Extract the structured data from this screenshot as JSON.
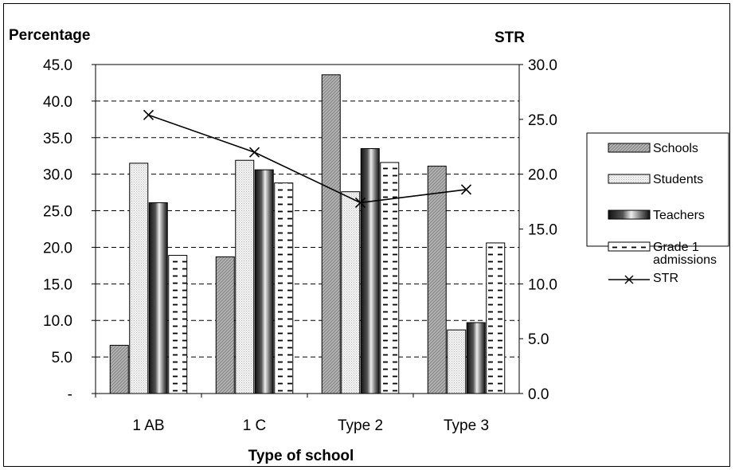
{
  "chart_data": {
    "type": "bar",
    "xlabel": "Type of school",
    "ylabel": "Percentage",
    "y2label": "STR",
    "categories": [
      "1 AB",
      "1 C",
      "Type 2",
      "Type 3"
    ],
    "ylim": [
      0,
      45
    ],
    "y2lim": [
      0,
      30
    ],
    "yticks": [
      "-",
      "5.0",
      "10.0",
      "15.0",
      "20.0",
      "25.0",
      "30.0",
      "35.0",
      "40.0",
      "45.0"
    ],
    "y2ticks": [
      "0.0",
      "5.0",
      "10.0",
      "15.0",
      "20.0",
      "25.0",
      "30.0"
    ],
    "grid": true,
    "legend_position": "right",
    "series": [
      {
        "name": "Schools",
        "kind": "bar",
        "values": [
          6.6,
          18.7,
          43.6,
          31.1
        ],
        "fill": "#b3b3b3",
        "pattern": "diagonal"
      },
      {
        "name": "Students",
        "kind": "bar",
        "values": [
          31.5,
          31.9,
          27.6,
          8.7
        ],
        "fill": "#ececec",
        "pattern": "dots"
      },
      {
        "name": "Teachers",
        "kind": "bar",
        "values": [
          26.1,
          30.6,
          33.5,
          9.7
        ],
        "fill": "#444444",
        "pattern": "gradient"
      },
      {
        "name": "Grade 1 admissions",
        "kind": "bar",
        "values": [
          18.9,
          28.8,
          31.6,
          20.6
        ],
        "fill": "#ffffff",
        "pattern": "dashes"
      },
      {
        "name": "STR",
        "kind": "line",
        "axis": "right",
        "values": [
          25.4,
          22.0,
          17.4,
          18.6
        ],
        "color": "#000000",
        "marker": "x"
      }
    ]
  }
}
